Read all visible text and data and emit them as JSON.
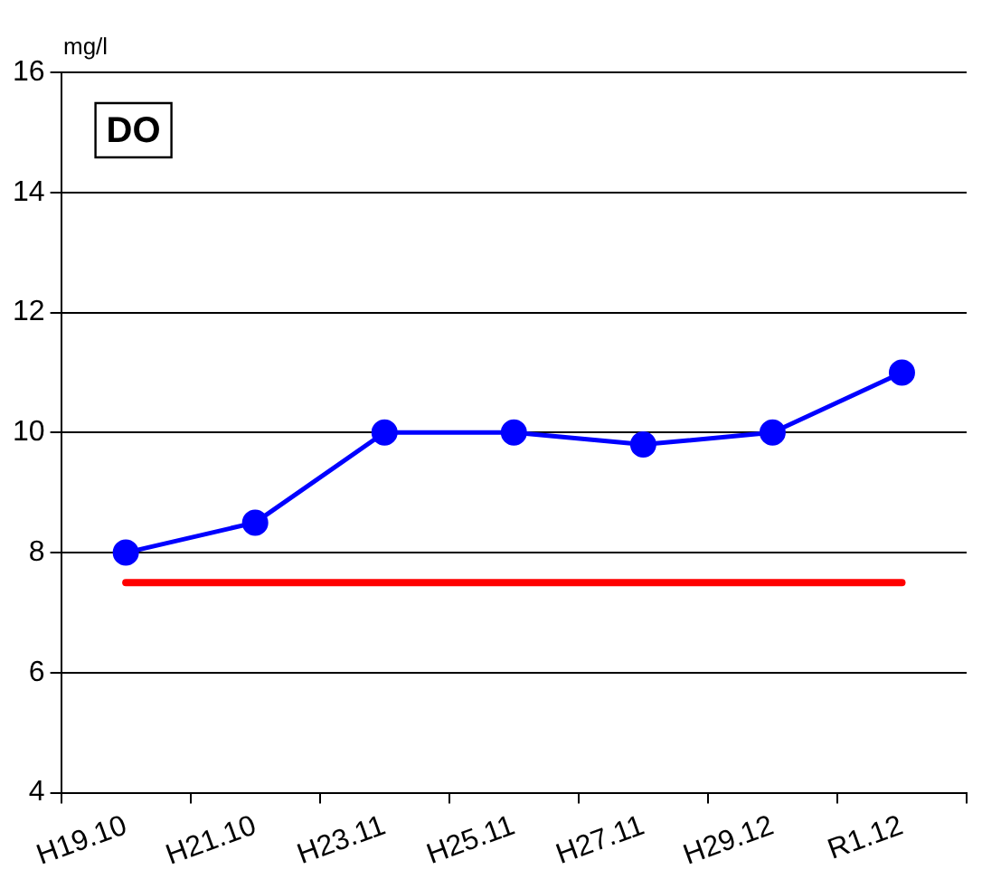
{
  "chart_data": {
    "type": "line",
    "ylabel": "mg/l",
    "annotations": [
      "DO"
    ],
    "categories": [
      "H19.10",
      "H21.10",
      "H23.11",
      "H25.11",
      "H27.11",
      "H29.12",
      "R1.12"
    ],
    "series": [
      {
        "color": "#0000ff",
        "values": [
          8,
          8.5,
          10,
          10,
          9.8,
          10,
          11
        ]
      }
    ],
    "ylim": [
      4,
      16
    ],
    "yticks": [
      4,
      6,
      8,
      10,
      12,
      14,
      16
    ],
    "grid": "y",
    "marker": "circle",
    "line_style": "solid",
    "legend": false,
    "ref_lines": [
      {
        "axis": "y",
        "value": 7.5,
        "color": "#ff0000"
      }
    ]
  }
}
